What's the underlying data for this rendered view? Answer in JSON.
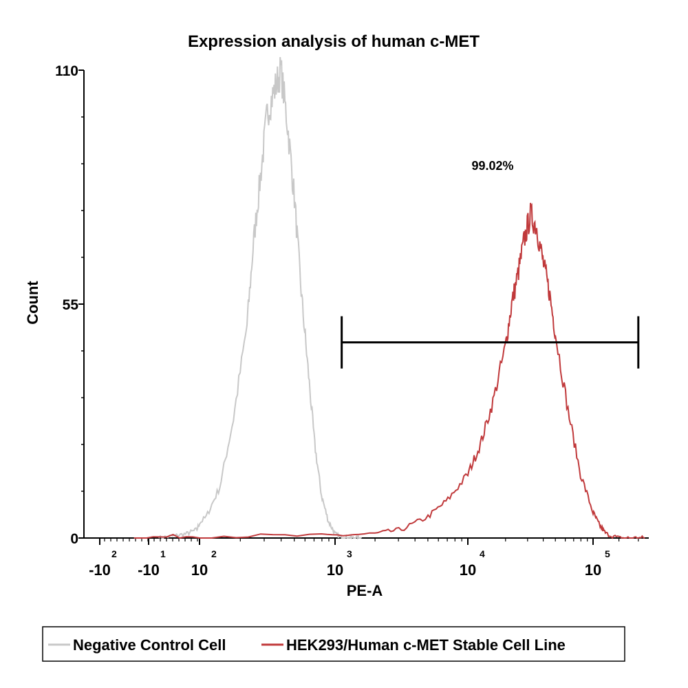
{
  "chart_data": {
    "type": "line",
    "title": "Expression analysis of human c-MET",
    "xlabel": "PE-A",
    "ylabel": "Count",
    "ylim": [
      0,
      110
    ],
    "y_ticks": [
      "0",
      "55",
      "110"
    ],
    "x_scale": "biexponential (log)",
    "x_ticks": [
      {
        "base": "-10",
        "exp": "2"
      },
      {
        "base": "-10",
        "exp": "1"
      },
      {
        "base": "10",
        "exp": "2"
      },
      {
        "base": "10",
        "exp": "3"
      },
      {
        "base": "10",
        "exp": "4"
      },
      {
        "base": "10",
        "exp": "5"
      }
    ],
    "gate": {
      "label": "99.02%",
      "from_log10": 3.05,
      "to_log10": 5.35,
      "level": 46
    },
    "series": [
      {
        "name": "Negative Control Cell",
        "color": "#c8c8c8",
        "log10_x": [
          1.2,
          1.5,
          1.75,
          1.95,
          2.05,
          2.15,
          2.25,
          2.35,
          2.4,
          2.45,
          2.5,
          2.55,
          2.6,
          2.65,
          2.7,
          2.75,
          2.8,
          2.85,
          2.9,
          2.95,
          3.0,
          3.05,
          3.1,
          3.15,
          3.2
        ],
        "values": [
          0,
          0.5,
          1,
          2,
          5,
          12,
          28,
          50,
          70,
          85,
          100,
          105,
          110,
          97,
          80,
          58,
          40,
          22,
          10,
          4,
          1,
          0,
          0,
          0,
          0
        ]
      },
      {
        "name": "HEK293/Human c-MET Stable Cell Line",
        "color": "#c0393b",
        "log10_x": [
          0.7,
          2.0,
          2.9,
          3.3,
          3.5,
          3.7,
          3.85,
          4.0,
          4.1,
          4.2,
          4.3,
          4.35,
          4.4,
          4.45,
          4.5,
          4.55,
          4.6,
          4.65,
          4.7,
          4.8,
          4.9,
          5.0,
          5.05,
          5.1,
          5.2,
          5.3,
          5.4
        ],
        "values": [
          0,
          0.5,
          0.5,
          1,
          2,
          5,
          9,
          15,
          22,
          32,
          45,
          55,
          62,
          70,
          76,
          73,
          65,
          58,
          48,
          30,
          15,
          6,
          3,
          1,
          0,
          0,
          0
        ]
      }
    ]
  },
  "legend": {
    "items": [
      {
        "label": "Negative Control Cell",
        "color": "#c8c8c8"
      },
      {
        "label": "HEK293/Human c-MET Stable Cell Line",
        "color": "#c0393b"
      }
    ]
  }
}
